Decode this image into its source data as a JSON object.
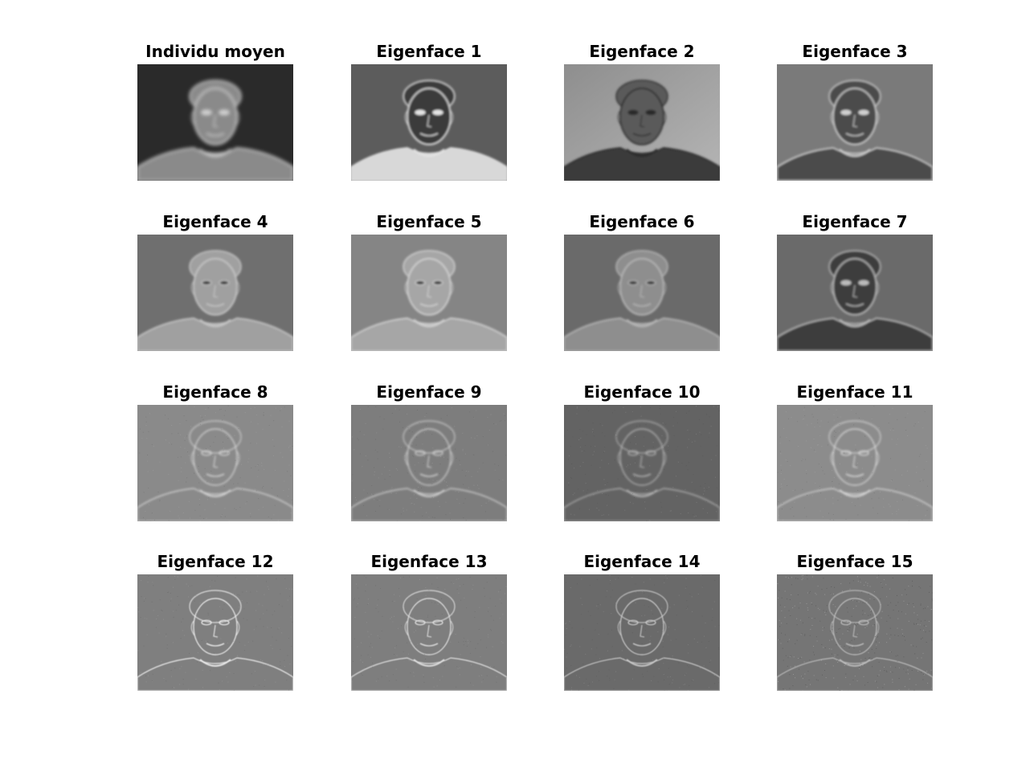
{
  "figure": {
    "panels": [
      {
        "title": "Individu moyen",
        "background": "#2a2a2a",
        "face_tone": "#8a8a8a",
        "edge_tone": "#d0d0d0",
        "style": "mean"
      },
      {
        "title": "Eigenface 1",
        "background": "#5c5c5c",
        "face_tone": "#3a3a3a",
        "edge_tone": "#e4e4e4",
        "style": "dark-face"
      },
      {
        "title": "Eigenface 2",
        "background": "#8e8e8e",
        "face_tone": "#5a5a5a",
        "edge_tone": "#2a2a2a",
        "style": "dark-body"
      },
      {
        "title": "Eigenface 3",
        "background": "#7a7a7a",
        "face_tone": "#4c4c4c",
        "edge_tone": "#cfcfcf",
        "style": "dark-face"
      },
      {
        "title": "Eigenface 4",
        "background": "#6f6f6f",
        "face_tone": "#a0a0a0",
        "edge_tone": "#c8c8c8",
        "style": "light-face"
      },
      {
        "title": "Eigenface 5",
        "background": "#858585",
        "face_tone": "#a6a6a6",
        "edge_tone": "#d4d4d4",
        "style": "light-face"
      },
      {
        "title": "Eigenface 6",
        "background": "#6a6a6a",
        "face_tone": "#8e8e8e",
        "edge_tone": "#b8b8b8",
        "style": "light-face"
      },
      {
        "title": "Eigenface 7",
        "background": "#6a6a6a",
        "face_tone": "#3e3e3e",
        "edge_tone": "#bcbcbc",
        "style": "dark-face"
      },
      {
        "title": "Eigenface 8",
        "background": "#8a8a8a",
        "face_tone": "#7a7a7a",
        "edge_tone": "#dcdcdc",
        "style": "edges"
      },
      {
        "title": "Eigenface 9",
        "background": "#7d7d7d",
        "face_tone": "#838383",
        "edge_tone": "#d8d8d8",
        "style": "edges"
      },
      {
        "title": "Eigenface 10",
        "background": "#636363",
        "face_tone": "#6e6e6e",
        "edge_tone": "#bcbcbc",
        "style": "edges"
      },
      {
        "title": "Eigenface 11",
        "background": "#8c8c8c",
        "face_tone": "#9a9a9a",
        "edge_tone": "#e0e0e0",
        "style": "edges"
      },
      {
        "title": "Eigenface 12",
        "background": "#7f7f7f",
        "face_tone": "#7f7f7f",
        "edge_tone": "#efefef",
        "style": "sharp"
      },
      {
        "title": "Eigenface 13",
        "background": "#7e7e7e",
        "face_tone": "#7e7e7e",
        "edge_tone": "#e2e2e2",
        "style": "sharp"
      },
      {
        "title": "Eigenface 14",
        "background": "#6a6a6a",
        "face_tone": "#6a6a6a",
        "edge_tone": "#cacaca",
        "style": "sharp"
      },
      {
        "title": "Eigenface 15",
        "background": "#757575",
        "face_tone": "#757575",
        "edge_tone": "#bdbdbd",
        "style": "noise"
      }
    ]
  }
}
